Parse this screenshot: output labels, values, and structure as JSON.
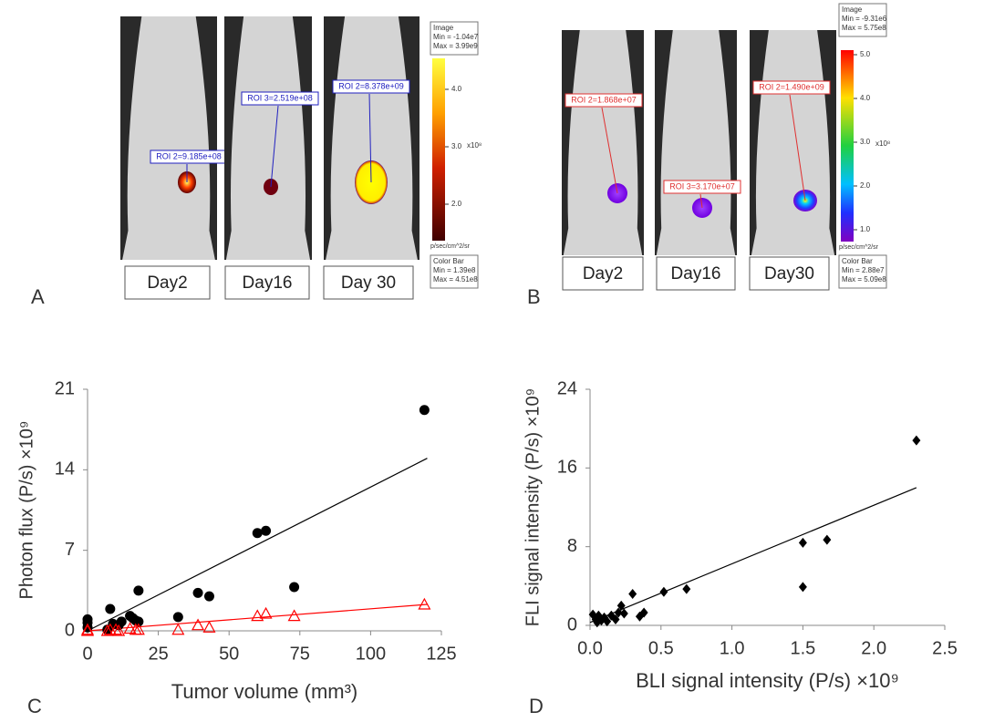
{
  "panel_a": {
    "letter": "A",
    "days": [
      "Day2",
      "Day16",
      "Day 30"
    ],
    "roi": [
      "ROI 2=9.185e+08",
      "ROI 3=2.519e+08",
      "ROI 2=8.378e+09"
    ],
    "image_box": [
      "Image",
      "Min = -1.04e7",
      "Max = 3.99e9"
    ],
    "colorbar_ticks": [
      "4.0",
      "3.0",
      "2.0"
    ],
    "colorbar_exponent": "x10⁸",
    "colorbar_unit": "p/sec/cm^2/sr",
    "color_bar_box": [
      "Color Bar",
      "Min = 1.39e8",
      "Max = 4.51e8"
    ]
  },
  "panel_b": {
    "letter": "B",
    "days": [
      "Day2",
      "Day16",
      "Day30"
    ],
    "roi": [
      "ROI 2=1.868e+07",
      "ROI 3=3.170e+07",
      "ROI 2=1.490e+09"
    ],
    "image_box": [
      "Image",
      "Min = -9.31e6",
      "Max = 5.75e8"
    ],
    "colorbar_ticks": [
      "5.0",
      "4.0",
      "3.0",
      "2.0",
      "1.0"
    ],
    "colorbar_exponent": "x10⁸",
    "colorbar_unit": "p/sec/cm^2/sr",
    "color_bar_box": [
      "Color Bar",
      "Min = 2.88e7",
      "Max = 5.09e8"
    ]
  },
  "chart_data": [
    {
      "type": "scatter",
      "letter": "C",
      "x_label": "Tumor volume (mm³)",
      "y_label": "Photon flux (P/s) ×10⁹",
      "xlim": [
        0,
        125
      ],
      "xticks": [
        0,
        25,
        50,
        75,
        100,
        125
      ],
      "ylim": [
        0,
        21
      ],
      "yticks": [
        0,
        7,
        14,
        21
      ],
      "series": [
        {
          "color": "#000000",
          "marker": "circle",
          "x": [
            0,
            0,
            0,
            7,
            8,
            9,
            11,
            12,
            15,
            16,
            17,
            18,
            18,
            32,
            39,
            43,
            60,
            63,
            73,
            119
          ],
          "values": [
            0.3,
            0.7,
            1.0,
            0.1,
            1.9,
            0.6,
            0.5,
            0.8,
            1.3,
            1.1,
            0.9,
            3.5,
            0.8,
            1.2,
            3.3,
            3.0,
            8.5,
            8.7,
            3.8,
            19.2
          ]
        },
        {
          "color": "#ff0000",
          "marker": "triangle",
          "x": [
            0,
            0,
            7,
            8,
            10,
            11,
            15,
            17,
            18,
            32,
            39,
            43,
            60,
            63,
            73,
            119
          ],
          "values": [
            0,
            0.1,
            0,
            0.1,
            0.1,
            0,
            0.2,
            0.1,
            0.1,
            0.1,
            0.5,
            0.3,
            1.3,
            1.5,
            1.3,
            2.3
          ]
        }
      ],
      "fit_lines": [
        {
          "color": "#000000",
          "x": [
            0,
            120
          ],
          "values": [
            0,
            15
          ]
        },
        {
          "color": "#ff0000",
          "x": [
            0,
            120
          ],
          "values": [
            0,
            2.3
          ]
        }
      ]
    },
    {
      "type": "scatter",
      "letter": "D",
      "x_label": "BLI signal intensity (P/s) ×10⁹",
      "y_label": "FLI signal intensity (P/s) ×10⁹",
      "xlim": [
        0,
        2.5
      ],
      "xticks": [
        {
          "value": 0,
          "label": "0.0"
        },
        0.5,
        {
          "value": 1,
          "label": "1.0"
        },
        1.5,
        {
          "value": 2,
          "label": "2.0"
        },
        2.5
      ],
      "ylim": [
        0,
        24
      ],
      "yticks": [
        0,
        8,
        16,
        24
      ],
      "series": [
        {
          "color": "#000000",
          "marker": "diamond",
          "x": [
            0.02,
            0.04,
            0.05,
            0.06,
            0.08,
            0.1,
            0.12,
            0.15,
            0.18,
            0.2,
            0.22,
            0.24,
            0.3,
            0.35,
            0.38,
            0.52,
            0.68,
            1.5,
            1.5,
            1.67,
            2.3
          ],
          "values": [
            1.1,
            0.6,
            0.3,
            1.0,
            0.5,
            0.8,
            0.4,
            1.0,
            0.6,
            1.3,
            2.0,
            1.2,
            3.2,
            0.9,
            1.3,
            3.4,
            3.7,
            3.9,
            8.4,
            8.7,
            18.8
          ]
        }
      ],
      "fit_lines": [
        {
          "color": "#000000",
          "x": [
            0,
            2.3
          ],
          "values": [
            0.3,
            14
          ]
        }
      ]
    }
  ]
}
